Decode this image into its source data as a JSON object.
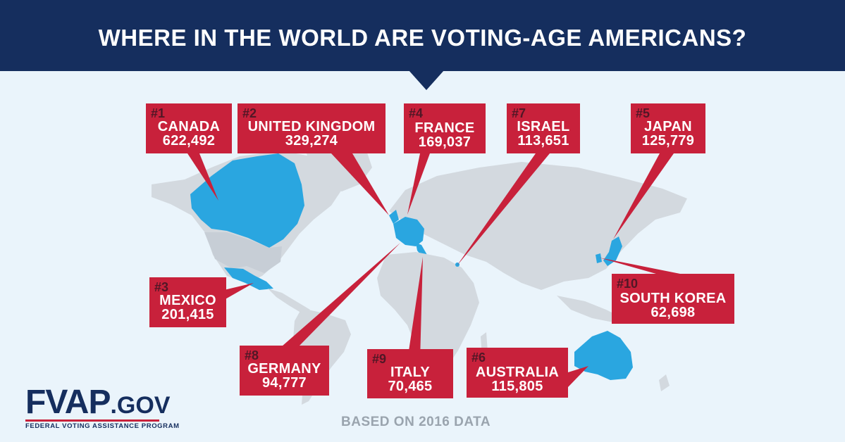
{
  "header": {
    "title": "WHERE IN THE WORLD ARE VOTING-AGE AMERICANS?"
  },
  "callouts": [
    {
      "rank": "#1",
      "name": "CANADA",
      "value": "622,492"
    },
    {
      "rank": "#2",
      "name": "UNITED KINGDOM",
      "value": "329,274"
    },
    {
      "rank": "#4",
      "name": "FRANCE",
      "value": "169,037"
    },
    {
      "rank": "#7",
      "name": "ISRAEL",
      "value": "113,651"
    },
    {
      "rank": "#5",
      "name": "JAPAN",
      "value": "125,779"
    },
    {
      "rank": "#3",
      "name": "MEXICO",
      "value": "201,415"
    },
    {
      "rank": "#10",
      "name": "SOUTH KOREA",
      "value": "62,698"
    },
    {
      "rank": "#8",
      "name": "GERMANY",
      "value": "94,777"
    },
    {
      "rank": "#9",
      "name": "ITALY",
      "value": "70,465"
    },
    {
      "rank": "#6",
      "name": "AUSTRALIA",
      "value": "115,805"
    }
  ],
  "footnote": "BASED ON 2016 DATA",
  "logo": {
    "fvap": "FVAP",
    "gov": ".GOV",
    "subtitle": "FEDERAL VOTING ASSISTANCE PROGRAM"
  },
  "colors": {
    "banner": "#152e5e",
    "callout": "#c8213b",
    "highlight_country": "#2aa6e0",
    "land": "#d3d9df",
    "background": "#eaf4fb"
  }
}
